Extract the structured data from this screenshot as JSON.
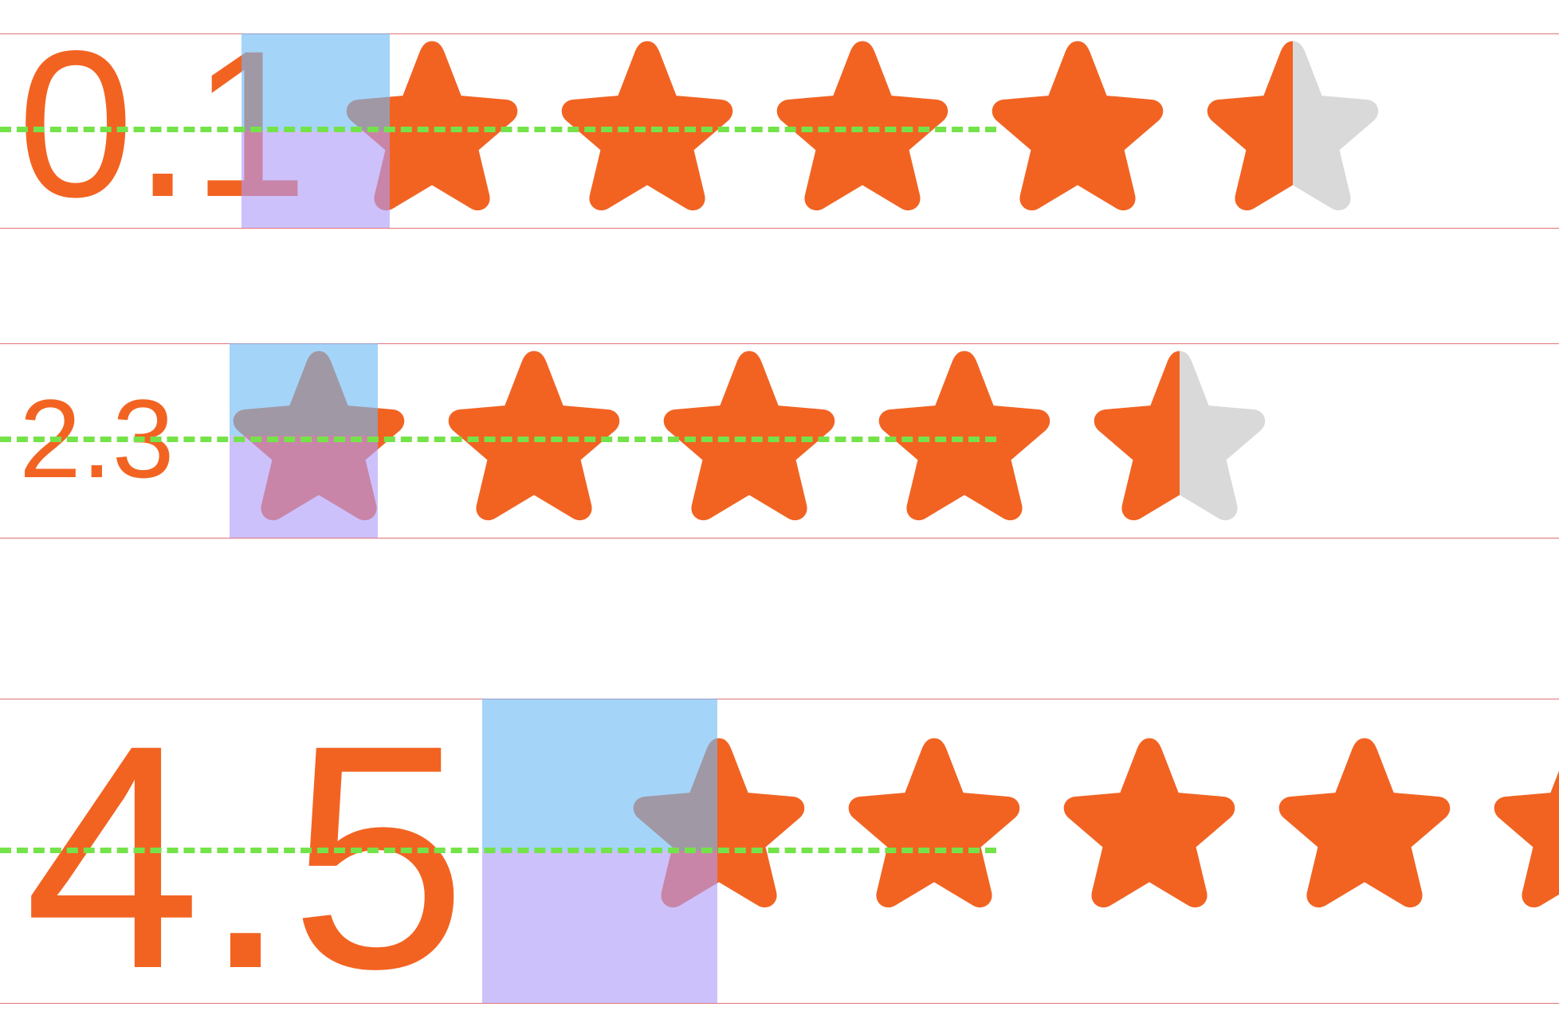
{
  "colors": {
    "star_filled": "#f26322",
    "star_empty": "#d9d9d9",
    "text": "#f26322",
    "bound_line": "#e2717a",
    "baseline_guide": "#74e34a",
    "overlay_top": "#6eb9f5",
    "overlay_bottom": "#af9bfa"
  },
  "icons": {
    "star": "star-icon"
  },
  "ratings": [
    {
      "label": "0.1",
      "stars_shown": 5,
      "fill_of_last_star": 0.5
    },
    {
      "label": "2.3",
      "stars_shown": 5,
      "fill_of_last_star": 0.5
    },
    {
      "label": "4.5",
      "stars_shown": 5,
      "fill_of_last_star": 1.0
    }
  ]
}
